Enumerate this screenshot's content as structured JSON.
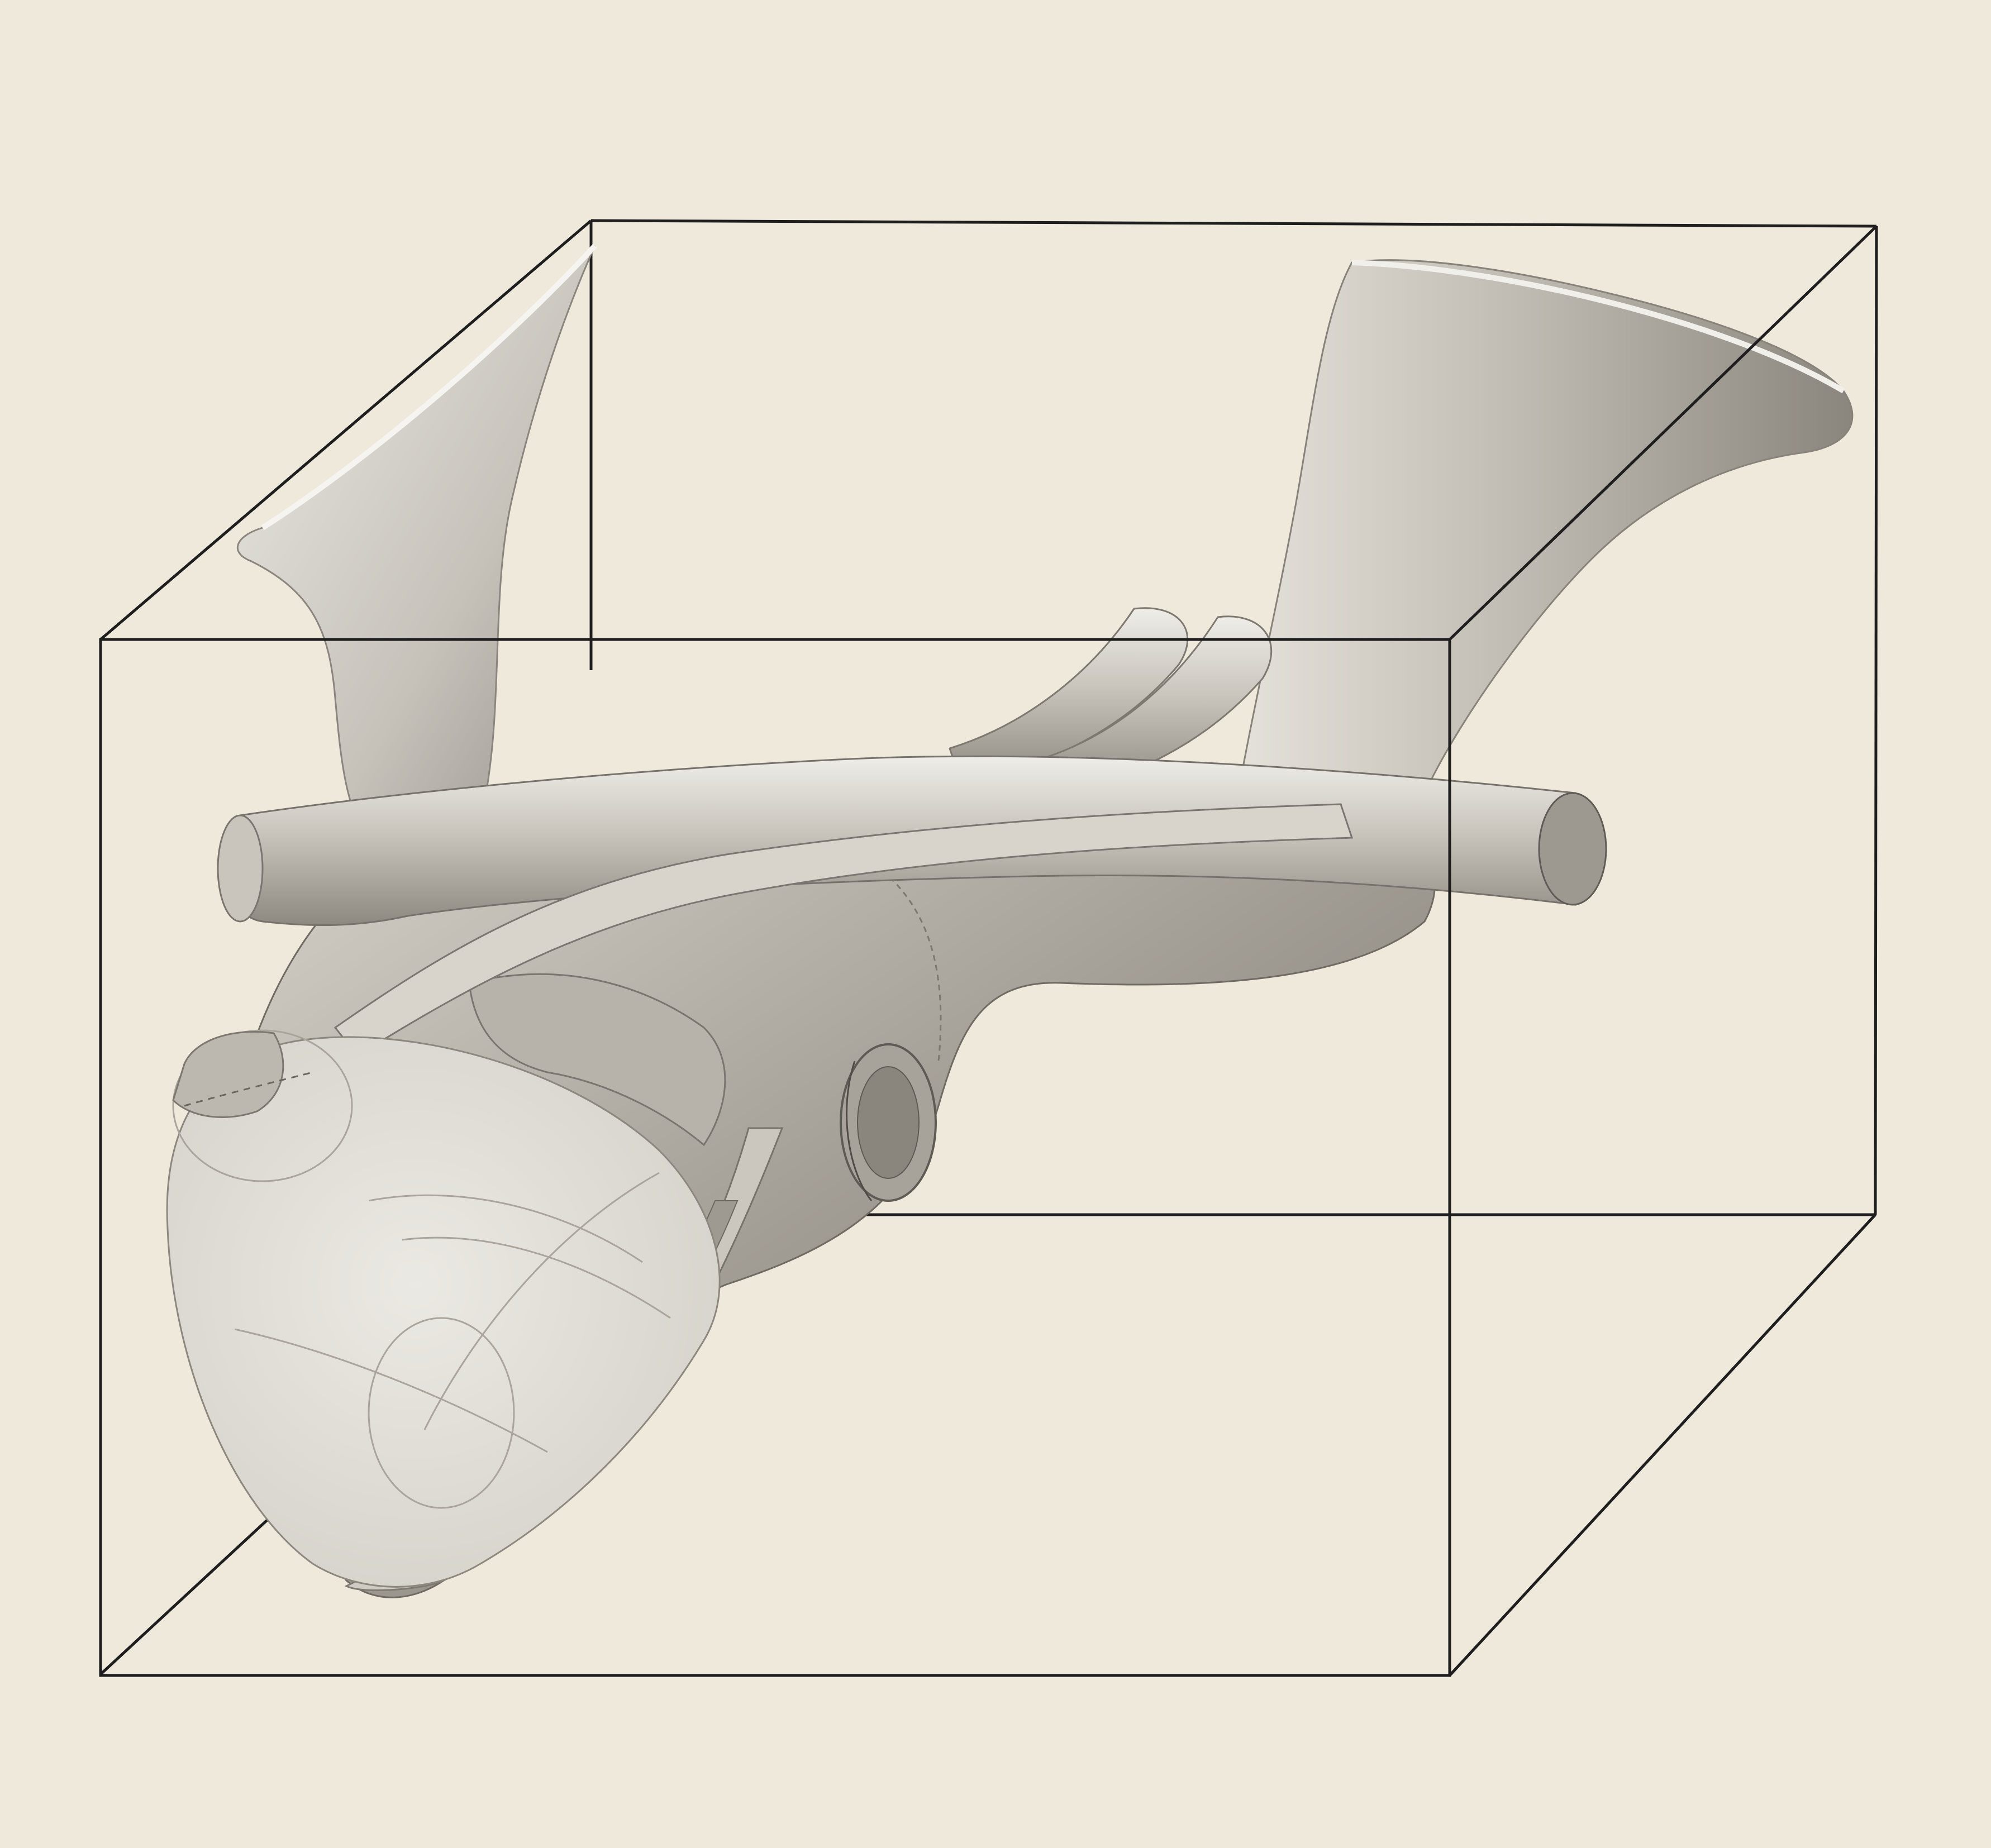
{
  "paper_color": "#efe9dc",
  "ink_color": "#1e1e1e",
  "shade_light": "#d9d5cc",
  "shade_mid": "#aaa59c",
  "shade_dark": "#6e6a64",
  "cutface_color": "#e4e1da"
}
